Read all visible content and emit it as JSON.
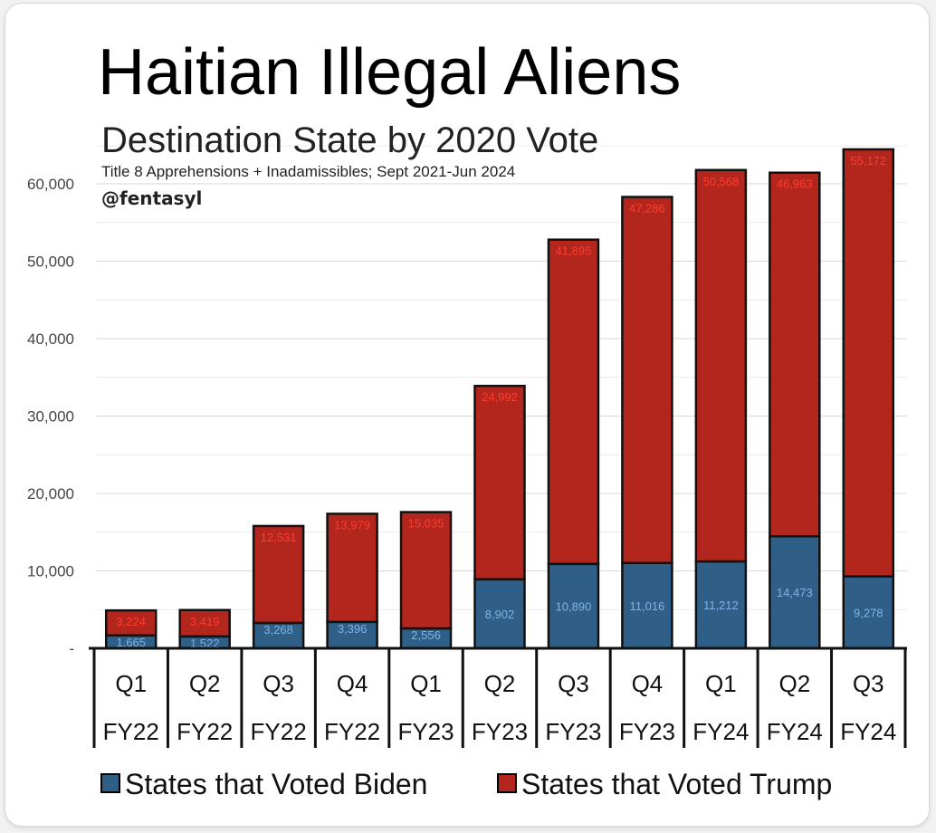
{
  "chart_data": {
    "type": "bar",
    "stacked": true,
    "title": "Haitian Illegal Aliens",
    "subtitle": "Destination State by 2020 Vote",
    "note": "Title 8 Apprehensions + Inadamissibles; Sept 2021-Jun 2024",
    "credit": "@fentasyl",
    "categories": [
      {
        "quarter": "Q1",
        "fy": "FY22"
      },
      {
        "quarter": "Q2",
        "fy": "FY22"
      },
      {
        "quarter": "Q3",
        "fy": "FY22"
      },
      {
        "quarter": "Q4",
        "fy": "FY22"
      },
      {
        "quarter": "Q1",
        "fy": "FY23"
      },
      {
        "quarter": "Q2",
        "fy": "FY23"
      },
      {
        "quarter": "Q3",
        "fy": "FY23"
      },
      {
        "quarter": "Q4",
        "fy": "FY23"
      },
      {
        "quarter": "Q1",
        "fy": "FY24"
      },
      {
        "quarter": "Q2",
        "fy": "FY24"
      },
      {
        "quarter": "Q3",
        "fy": "FY24"
      }
    ],
    "series": [
      {
        "name": "States that Voted Biden",
        "color": "#2f5f87",
        "label_color": "#7fb3e6",
        "values": [
          1665,
          1522,
          3268,
          3396,
          2556,
          8902,
          10890,
          11016,
          11212,
          14473,
          9278
        ],
        "labels": [
          "1,665",
          "1,522",
          "3,268",
          "3,396",
          "2,556",
          "8,902",
          "10,890",
          "11,016",
          "11,212",
          "14,473",
          "9,278"
        ]
      },
      {
        "name": "States that Voted Trump",
        "color": "#b3261e",
        "label_color": "#ff3b2f",
        "values": [
          3224,
          3419,
          12531,
          13979,
          15035,
          24992,
          41895,
          47286,
          50568,
          46963,
          55172
        ],
        "labels": [
          "3,224",
          "3,419",
          "12,531",
          "13,979",
          "15,035",
          "24,992",
          "41,895",
          "47,286",
          "50,568",
          "46,963",
          "55,172"
        ]
      }
    ],
    "yticks": [
      {
        "value": 0,
        "label": "-"
      },
      {
        "value": 10000,
        "label": "10,000"
      },
      {
        "value": 20000,
        "label": "20,000"
      },
      {
        "value": 30000,
        "label": "30,000"
      },
      {
        "value": 40000,
        "label": "40,000"
      },
      {
        "value": 50000,
        "label": "50,000"
      },
      {
        "value": 60000,
        "label": "60,000"
      }
    ],
    "ylim": [
      0,
      60000
    ],
    "grid": true,
    "legend_position": "bottom"
  }
}
